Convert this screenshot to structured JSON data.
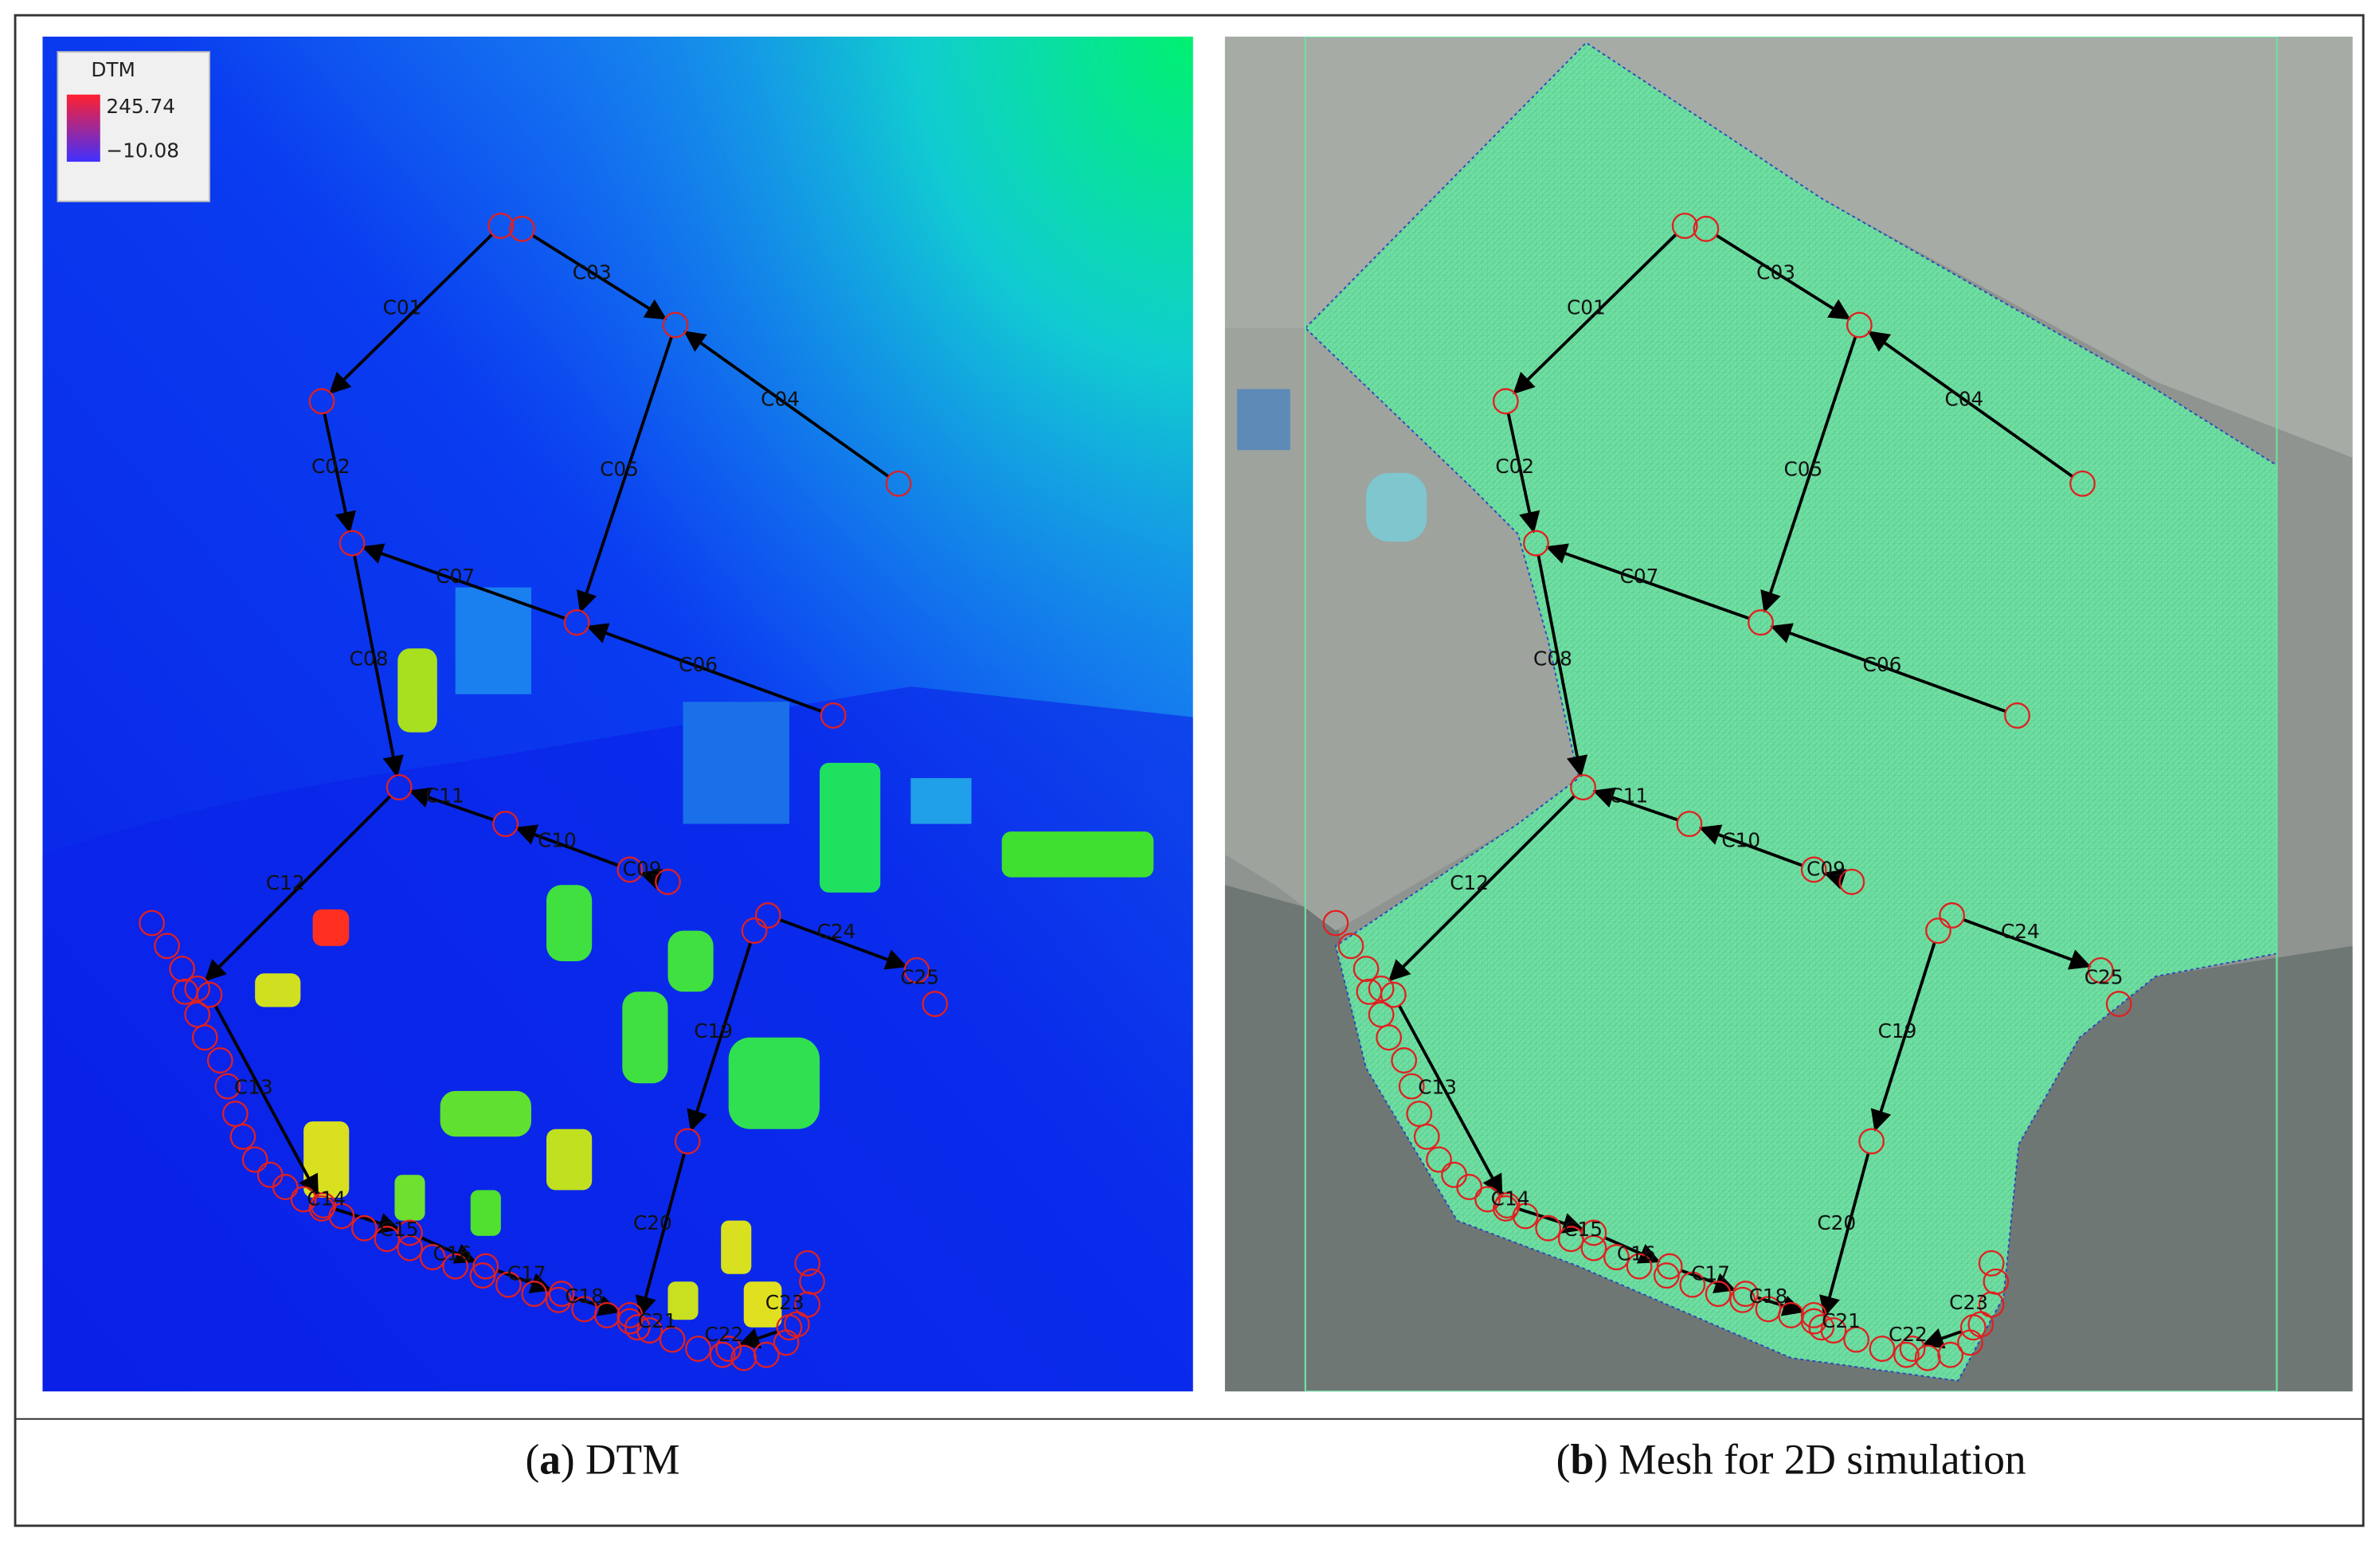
{
  "panel_a": {
    "legend": {
      "title": "DTM",
      "max": "245.74",
      "min": "−10.08"
    },
    "conduit_labels": [
      "C01",
      "C02",
      "C03",
      "C04",
      "C05",
      "C06",
      "C07",
      "C08",
      "C09",
      "C10",
      "C11",
      "C12",
      "C13",
      "C14",
      "C15",
      "C16",
      "C17",
      "C18",
      "C19",
      "C20",
      "C21",
      "C22",
      "C23",
      "C24",
      "C25"
    ],
    "caption": [
      "(",
      "a",
      ") DTM"
    ]
  },
  "panel_b": {
    "conduit_labels": [
      "C01",
      "C02",
      "C03",
      "C04",
      "C05",
      "C06",
      "C07",
      "C08",
      "C09",
      "C10",
      "C11",
      "C12",
      "C13",
      "C14",
      "C15",
      "C16",
      "C17",
      "C18",
      "C19",
      "C20",
      "C21",
      "C22",
      "C23",
      "C24",
      "C25"
    ],
    "caption": [
      "(",
      "b",
      ") Mesh for 2D simulation"
    ]
  }
}
